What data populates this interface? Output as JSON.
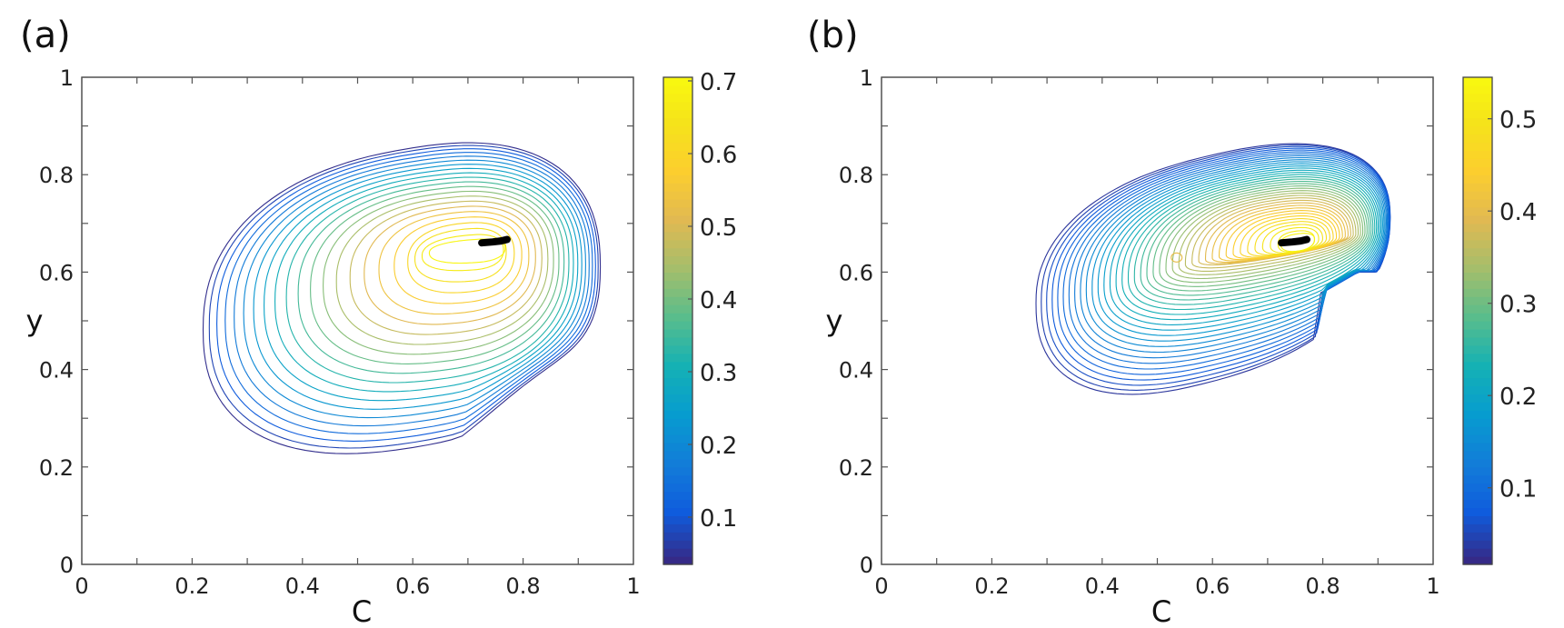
{
  "chart_data": [
    {
      "type": "contour",
      "panel_label": "(a)",
      "xlabel": "C",
      "ylabel": "y",
      "xlim": [
        0,
        1
      ],
      "ylim": [
        0,
        1
      ],
      "xticks": [
        0,
        0.2,
        0.4,
        0.6,
        0.8,
        1
      ],
      "xtick_labels": [
        "0",
        "0.2",
        "0.4",
        "0.6",
        "0.8",
        "1"
      ],
      "yticks": [
        0,
        0.2,
        0.4,
        0.6,
        0.8,
        1
      ],
      "ytick_labels": [
        "0",
        "0.2",
        "0.4",
        "0.6",
        "0.8",
        "1"
      ],
      "colormap": "parula",
      "colorbar": {
        "range": [
          0.035,
          0.705
        ],
        "ticks": [
          0.1,
          0.2,
          0.3,
          0.4,
          0.5,
          0.6,
          0.7
        ],
        "tick_labels": [
          "0.1",
          "0.2",
          "0.3",
          "0.4",
          "0.5",
          "0.6",
          "0.7"
        ]
      },
      "contour_levels": {
        "min": 0.04,
        "max": 0.69,
        "count": 22
      },
      "outer_contour_extent": {
        "C": [
          0.22,
          0.94
        ],
        "y": [
          0.24,
          0.855
        ]
      },
      "peak": {
        "C": 0.74,
        "y": 0.66
      },
      "trajectory": [
        [
          0.725,
          0.66
        ],
        [
          0.745,
          0.662
        ],
        [
          0.76,
          0.664
        ],
        [
          0.771,
          0.667
        ]
      ]
    },
    {
      "type": "contour",
      "panel_label": "(b)",
      "xlabel": "C",
      "ylabel": "y",
      "xlim": [
        0,
        1
      ],
      "ylim": [
        0,
        1
      ],
      "xticks": [
        0,
        0.2,
        0.4,
        0.6,
        0.8,
        1
      ],
      "xtick_labels": [
        "0",
        "0.2",
        "0.4",
        "0.6",
        "0.8",
        "1"
      ],
      "yticks": [
        0,
        0.2,
        0.4,
        0.6,
        0.8,
        1
      ],
      "ytick_labels": [
        "0",
        "0.2",
        "0.4",
        "0.6",
        "0.8",
        "1"
      ],
      "colormap": "parula",
      "colorbar": {
        "range": [
          0.017,
          0.545
        ],
        "ticks": [
          0.1,
          0.2,
          0.3,
          0.4,
          0.5
        ],
        "tick_labels": [
          "0.1",
          "0.2",
          "0.3",
          "0.4",
          "0.5"
        ]
      },
      "contour_levels": {
        "min": 0.03,
        "max": 0.53,
        "count": 40
      },
      "outer_contour_extent": {
        "C": [
          0.28,
          0.92
        ],
        "y": [
          0.37,
          0.835
        ]
      },
      "peak": {
        "C": 0.76,
        "y": 0.665
      },
      "secondary_peak": {
        "C": 0.535,
        "y": 0.63
      },
      "trajectory": [
        [
          0.725,
          0.66
        ],
        [
          0.745,
          0.662
        ],
        [
          0.76,
          0.664
        ],
        [
          0.771,
          0.667
        ]
      ]
    }
  ]
}
